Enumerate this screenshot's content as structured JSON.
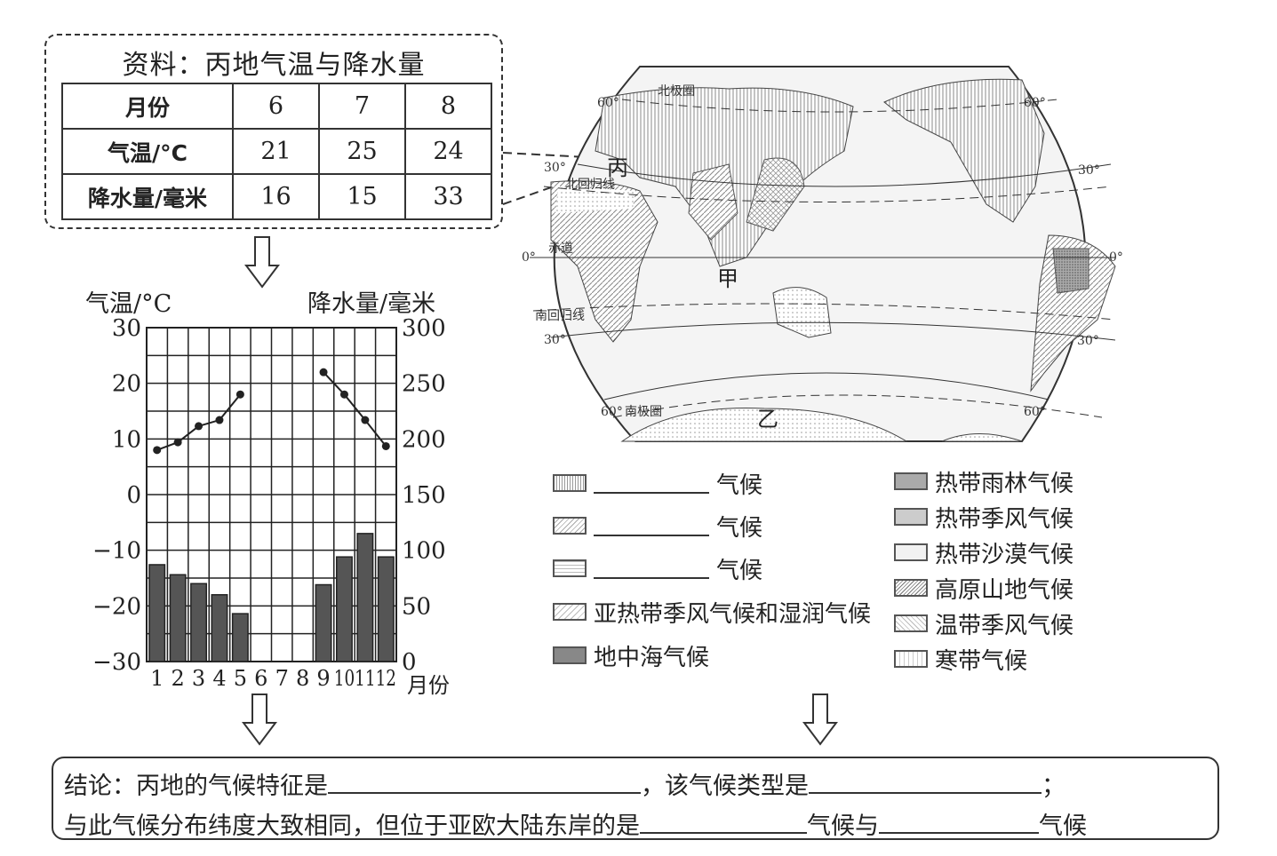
{
  "data_box": {
    "title": "资料：丙地气温与降水量",
    "headers": [
      "月份",
      "6",
      "7",
      "8"
    ],
    "rows": [
      {
        "label": "气温/°C",
        "values": [
          "21",
          "25",
          "24"
        ]
      },
      {
        "label": "降水量/毫米",
        "values": [
          "16",
          "15",
          "33"
        ]
      }
    ]
  },
  "chart_data": {
    "type": "bar+line",
    "categories": [
      "1",
      "2",
      "3",
      "4",
      "5",
      "6",
      "7",
      "8",
      "9",
      "10",
      "11",
      "12"
    ],
    "xlabel": "月份",
    "y_left_label": "气温/°C",
    "y_right_label": "降水量/毫米",
    "y_left_ticks": [
      "30",
      "20",
      "10",
      "0",
      "-10",
      "-20",
      "-30"
    ],
    "y_right_ticks": [
      "300",
      "250",
      "200",
      "150",
      "100",
      "50",
      "0"
    ],
    "y_left_range": [
      -30,
      30
    ],
    "y_right_range": [
      0,
      300
    ],
    "grid": true,
    "series": [
      {
        "kind": "line",
        "axis": "left",
        "values": [
          8,
          9.4,
          12.3,
          13.4,
          18,
          null,
          null,
          null,
          22,
          18,
          13.4,
          8.7
        ]
      },
      {
        "kind": "bar",
        "axis": "right",
        "values": [
          87,
          78,
          70,
          60,
          43,
          null,
          null,
          null,
          69,
          94,
          115,
          94
        ]
      }
    ]
  },
  "map": {
    "labels": {
      "arctic_circle": "北极圈",
      "tropic_cancer": "北回归线",
      "equator": "赤道",
      "tropic_capricorn": "南回归线",
      "antarctic_circle": "南极圈",
      "lat60": "60°",
      "lat30": "30°",
      "lat0": "0°",
      "place_bing": "丙",
      "place_jia": "甲",
      "place_yi": "乙"
    }
  },
  "legend": {
    "suffix": "气候",
    "left": [
      "",
      "",
      "",
      "亚热带季风气候和湿润气候",
      "地中海气候"
    ],
    "right": [
      "热带雨林气候",
      "热带季风气候",
      "热带沙漠气候",
      "高原山地气候",
      "温带季风气候",
      "寒带气候"
    ]
  },
  "conclusion": {
    "p1": "结论：丙地的气候特征是",
    "p2": "，该气候类型是",
    "p3": "；",
    "p4": "与此气候分布纬度大致相同，但位于亚欧大陆东岸的是",
    "p5": "气候与",
    "p6": "气候"
  }
}
